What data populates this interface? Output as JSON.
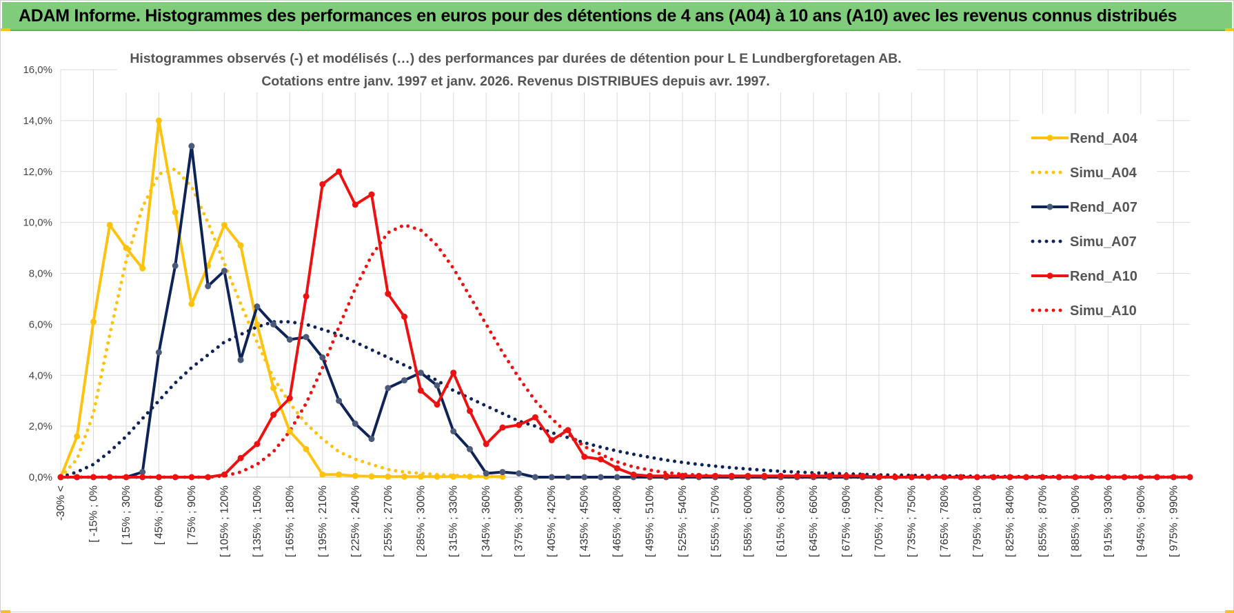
{
  "header": {
    "title": "ADAM Informe. Histogrammes des performances en euros pour des détentions de 4 ans (A04) à 10 ans (A10) avec les revenus connus distribués"
  },
  "colors": {
    "banner": "#7fcc7a",
    "a04": "#ffc20e",
    "a07": "#0e2358",
    "a10": "#ee1111",
    "grid": "#d9d9d9"
  },
  "chart_data": {
    "type": "line",
    "title_line1": "Histogrammes observés (-) et modélisés (…) des performances par durées de détention pour L E Lundbergforetagen AB.",
    "title_line2": "Cotations entre janv. 1997 et janv. 2026. Revenus DISTRIBUES depuis avr. 1997.",
    "ylim": [
      0,
      16
    ],
    "yticks": [
      0,
      2,
      4,
      6,
      8,
      10,
      12,
      14,
      16
    ],
    "ytick_labels": [
      "0,0%",
      "2,0%",
      "4,0%",
      "6,0%",
      "8,0%",
      "10,0%",
      "12,0%",
      "14,0%",
      "16,0%"
    ],
    "grid": true,
    "legend_position": "right",
    "tick_labels": [
      "-30% <",
      "[ -15% ; 0%",
      "[ 15% ; 30%",
      "[ 45% ; 60%",
      "[ 75% ; 90%",
      "[ 105% ; 120%",
      "[ 135% ; 150%",
      "[ 165% ; 180%",
      "[ 195% ; 210%",
      "[ 225% ; 240%",
      "[ 255% ; 270%",
      "[ 285% ; 300%",
      "[ 315% ; 330%",
      "[ 345% ; 360%",
      "[ 375% ; 390%",
      "[ 405% ; 420%",
      "[ 435% ; 450%",
      "[ 465% ; 480%",
      "[ 495% ; 510%",
      "[ 525% ; 540%",
      "[ 555% ; 570%",
      "[ 585% ; 600%",
      "[ 615% ; 630%",
      "[ 645% ; 660%",
      "[ 675% ; 690%",
      "[ 705% ; 720%",
      "[ 735% ; 750%",
      "[ 765% ; 780%",
      "[ 795% ; 810%",
      "[ 825% ; 840%",
      "[ 855% ; 870%",
      "[ 885% ; 900%",
      "[ 915% ; 930%",
      "[ 945% ; 960%",
      "[ 975% ; 990%"
    ],
    "series": [
      {
        "name": "Rend_A04",
        "style": "solid",
        "color": "#ffc20e",
        "values": [
          0,
          1.6,
          6.1,
          9.9,
          9.0,
          8.2,
          14.0,
          10.4,
          6.8,
          8.3,
          9.9,
          9.1,
          6.0,
          3.5,
          1.8,
          1.1,
          0.1,
          0.1,
          0.05,
          0.03,
          0.02,
          0.02,
          0.02,
          0.02,
          0.02,
          0.02,
          0.02,
          0.02
        ]
      },
      {
        "name": "Simu_A04",
        "style": "dotted",
        "color": "#ffc20e",
        "values": [
          0,
          0.7,
          2.5,
          5.6,
          8.5,
          10.6,
          11.9,
          12.1,
          11.4,
          10.0,
          8.4,
          6.8,
          5.3,
          3.9,
          2.9,
          2.1,
          1.5,
          1.0,
          0.7,
          0.5,
          0.3,
          0.2,
          0.15,
          0.1,
          0.07,
          0.05,
          0.03,
          0.02
        ]
      },
      {
        "name": "Rend_A07",
        "style": "solid",
        "color": "#0e2358",
        "values": [
          0,
          0,
          0,
          0,
          0,
          0.2,
          4.9,
          8.3,
          13.0,
          7.5,
          8.1,
          4.6,
          6.7,
          6.0,
          5.4,
          5.5,
          4.7,
          3.0,
          2.1,
          1.5,
          3.5,
          3.8,
          4.1,
          3.6,
          1.8,
          1.1,
          0.15,
          0.2,
          0.15,
          0,
          0,
          0,
          0,
          0,
          0,
          0,
          0,
          0,
          0,
          0,
          0,
          0,
          0,
          0,
          0,
          0,
          0,
          0,
          0,
          0,
          0,
          0,
          0,
          0,
          0,
          0,
          0,
          0,
          0,
          0,
          0,
          0,
          0,
          0,
          0,
          0,
          0,
          0,
          0,
          0
        ]
      },
      {
        "name": "Simu_A07",
        "style": "dotted",
        "color": "#0e2358",
        "values": [
          0,
          0.2,
          0.5,
          1.0,
          1.6,
          2.3,
          3.0,
          3.7,
          4.3,
          4.8,
          5.3,
          5.6,
          5.9,
          6.1,
          6.1,
          6.0,
          5.8,
          5.6,
          5.3,
          5.0,
          4.7,
          4.4,
          4.1,
          3.8,
          3.4,
          3.1,
          2.8,
          2.5,
          2.2,
          2.0,
          1.75,
          1.55,
          1.35,
          1.18,
          1.03,
          0.9,
          0.78,
          0.67,
          0.58,
          0.5,
          0.43,
          0.37,
          0.32,
          0.27,
          0.23,
          0.2,
          0.17,
          0.15,
          0.13,
          0.11,
          0.09,
          0.08,
          0.07,
          0.06,
          0.05,
          0.04,
          0.035,
          0.03,
          0.025,
          0.02,
          0.018,
          0.015,
          0.012,
          0.01,
          0.008,
          0.006,
          0.005,
          0.004,
          0.003,
          0.002
        ]
      },
      {
        "name": "Rend_A10",
        "style": "solid",
        "color": "#ee1111",
        "values": [
          0,
          0,
          0,
          0,
          0,
          0,
          0,
          0,
          0,
          0,
          0.1,
          0.75,
          1.3,
          2.45,
          3.1,
          7.1,
          11.5,
          12.0,
          10.7,
          11.1,
          7.2,
          6.3,
          3.4,
          2.85,
          4.1,
          2.6,
          1.3,
          1.95,
          2.05,
          2.35,
          1.45,
          1.85,
          0.8,
          0.7,
          0.35,
          0.1,
          0.05,
          0.05,
          0.05,
          0.05,
          0.05,
          0.05,
          0.05,
          0.05,
          0.05,
          0.05,
          0.05,
          0.05,
          0.05,
          0.05,
          0,
          0,
          0,
          0,
          0,
          0,
          0,
          0,
          0,
          0,
          0,
          0,
          0,
          0,
          0,
          0,
          0,
          0,
          0,
          0
        ]
      },
      {
        "name": "Simu_A10",
        "style": "dotted",
        "color": "#ee1111",
        "values": [
          0,
          0,
          0,
          0,
          0,
          0,
          0,
          0,
          0,
          0,
          0.05,
          0.2,
          0.5,
          1.0,
          1.8,
          2.9,
          4.3,
          5.9,
          7.4,
          8.7,
          9.6,
          9.9,
          9.7,
          9.1,
          8.2,
          7.1,
          6.0,
          4.9,
          3.9,
          3.0,
          2.3,
          1.7,
          1.2,
          0.9,
          0.6,
          0.4,
          0.28,
          0.18,
          0.12,
          0.08,
          0.05,
          0.03,
          0.02,
          0.01,
          0.005,
          0,
          0,
          0,
          0,
          0,
          0,
          0,
          0,
          0,
          0,
          0,
          0,
          0,
          0,
          0,
          0,
          0,
          0,
          0,
          0,
          0,
          0,
          0,
          0,
          0
        ]
      }
    ]
  }
}
